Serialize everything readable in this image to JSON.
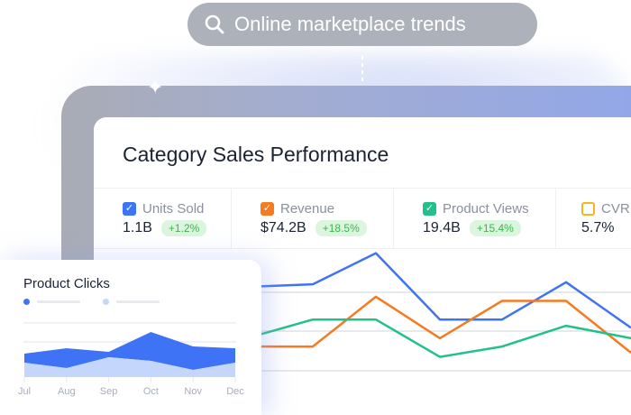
{
  "search": {
    "query": "Online marketplace trends",
    "icon": "search-icon"
  },
  "card": {
    "title": "Category Sales Performance",
    "metrics": [
      {
        "label": "Units Sold",
        "value": "1.1B",
        "change": "+1.2%",
        "color": "#3f73f5",
        "checked": true
      },
      {
        "label": "Revenue",
        "value": "$74.2B",
        "change": "+18.5%",
        "color": "#f57a22",
        "checked": true
      },
      {
        "label": "Product Views",
        "value": "19.4B",
        "change": "+15.4%",
        "color": "#22c08a",
        "checked": true
      },
      {
        "label": "CVR",
        "value": "5.7%",
        "color": "#f5b422",
        "checked": false
      }
    ]
  },
  "chart_data": [
    {
      "type": "line",
      "series": [
        {
          "color": "#3f73f5",
          "values": [
            62,
            63,
            78,
            46,
            46,
            64,
            42
          ]
        },
        {
          "color": "#f57a22",
          "values": [
            33,
            33,
            57,
            37,
            55,
            55,
            30
          ]
        },
        {
          "color": "#22c08a",
          "values": [
            39,
            46,
            46,
            28,
            33,
            43,
            37
          ]
        }
      ]
    },
    {
      "type": "area",
      "title": "Product Clicks",
      "categories": [
        "Jul",
        "Aug",
        "Sep",
        "Oct",
        "Nov",
        "Dec"
      ],
      "series": [
        {
          "color": "#3f73f5",
          "values": [
            26,
            32,
            28,
            50,
            34,
            32
          ]
        },
        {
          "color": "#c4d6fb",
          "values": [
            16,
            10,
            22,
            18,
            8,
            16
          ]
        }
      ]
    }
  ]
}
